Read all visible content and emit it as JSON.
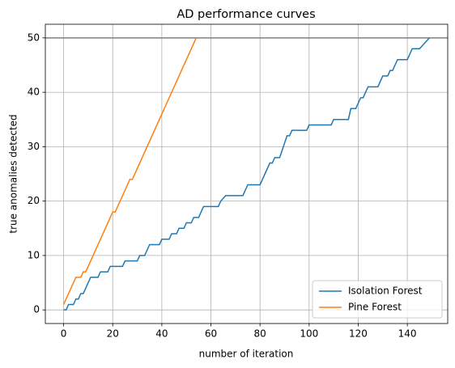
{
  "chart_data": {
    "type": "line",
    "title": "AD performance curves",
    "xlabel": "number of iteration",
    "ylabel": "true anomalies detected",
    "xlim": [
      -7.45,
      156.45
    ],
    "ylim": [
      -2.5,
      52.5
    ],
    "xticks": [
      0,
      20,
      40,
      60,
      80,
      100,
      120,
      140
    ],
    "yticks": [
      0,
      10,
      20,
      30,
      40,
      50
    ],
    "grid": true,
    "legend": "lower right",
    "hline": {
      "value": 50,
      "color": "#808080"
    },
    "series": [
      {
        "name": "Isolation Forest",
        "color": "#1f77b4",
        "x": [
          0,
          1,
          2,
          4,
          5,
          6,
          7,
          8,
          10,
          11,
          14,
          15,
          18,
          19,
          24,
          25,
          30,
          31,
          33,
          35,
          39,
          40,
          43,
          44,
          46,
          47,
          49,
          50,
          52,
          53,
          55,
          57,
          63,
          64,
          66,
          73,
          75,
          80,
          84,
          85,
          86,
          88,
          91,
          92,
          93,
          99,
          100,
          109,
          110,
          116,
          117,
          119,
          121,
          122,
          124,
          128,
          130,
          132,
          133,
          134,
          136,
          140,
          141,
          142,
          145,
          147,
          149
        ],
        "values": [
          0,
          0,
          1,
          1,
          2,
          2,
          3,
          3,
          5,
          6,
          6,
          7,
          7,
          8,
          8,
          9,
          9,
          10,
          10,
          12,
          12,
          13,
          13,
          14,
          14,
          15,
          15,
          16,
          16,
          17,
          17,
          19,
          19,
          20,
          21,
          21,
          23,
          23,
          27,
          27,
          28,
          28,
          32,
          32,
          33,
          33,
          34,
          34,
          35,
          35,
          37,
          37,
          39,
          39,
          41,
          41,
          43,
          43,
          44,
          44,
          46,
          46,
          47,
          48,
          48,
          49,
          50
        ]
      },
      {
        "name": "Pine Forest",
        "color": "#ff7f0e",
        "x": [
          0,
          5,
          7,
          8,
          9,
          20,
          21,
          27,
          28,
          54
        ],
        "values": [
          1,
          6,
          6,
          7,
          7,
          18,
          18,
          24,
          24,
          50
        ]
      }
    ]
  }
}
